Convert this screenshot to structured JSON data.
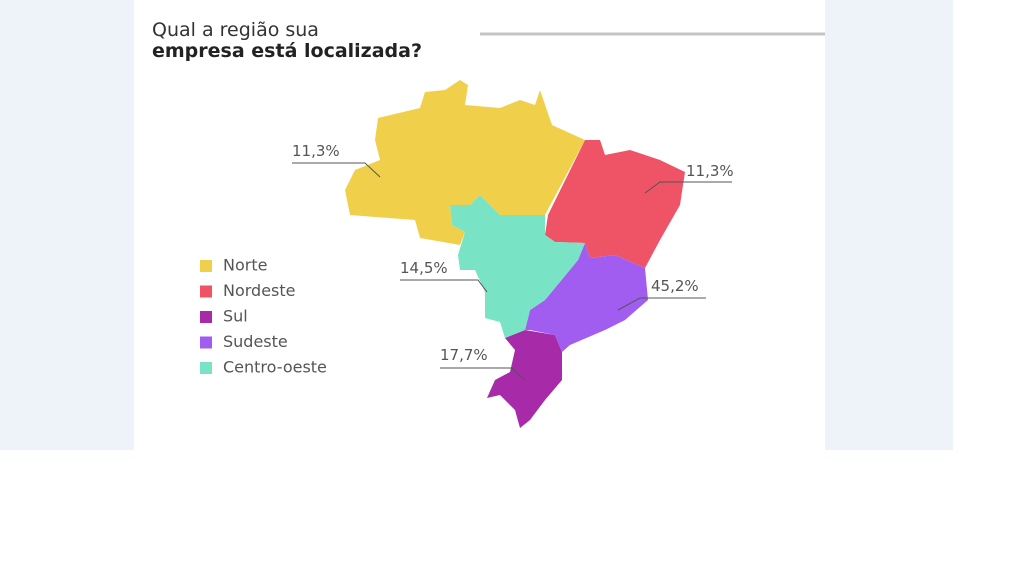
{
  "chart_data": {
    "type": "map",
    "title_lines": [
      "Qual a região sua",
      "empresa está localizada?"
    ],
    "categories": [
      "Norte",
      "Nordeste",
      "Sul",
      "Sudeste",
      "Centro-oeste"
    ],
    "values": [
      11.3,
      11.3,
      17.7,
      45.2,
      14.5
    ],
    "value_labels": [
      "11,3%",
      "11,3%",
      "17,7%",
      "45,2%",
      "14,5%"
    ],
    "colors": [
      "#f0d04a",
      "#ef5466",
      "#a72aa8",
      "#a05df0",
      "#79e3c5"
    ]
  }
}
